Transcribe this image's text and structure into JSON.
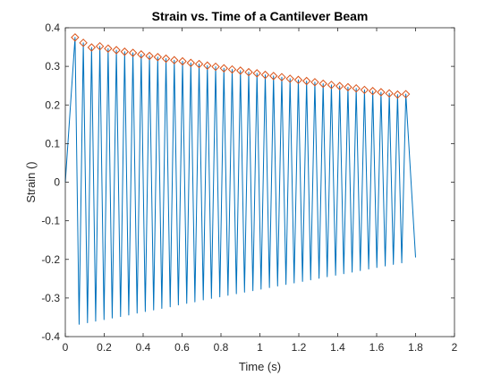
{
  "chart_data": {
    "type": "line",
    "title": "Strain vs. Time of a Cantilever Beam",
    "xlabel": "Time (s)",
    "ylabel": "Strain ()",
    "xlim": [
      0,
      2
    ],
    "ylim": [
      -0.4,
      0.4
    ],
    "xticks": [
      "0",
      "0.2",
      "0.4",
      "0.6",
      "0.8",
      "1",
      "1.2",
      "1.4",
      "1.6",
      "1.8",
      "2"
    ],
    "yticks": [
      "-0.4",
      "-0.3",
      "-0.2",
      "-0.1",
      "0",
      "0.1",
      "0.2",
      "0.3",
      "0.4"
    ],
    "grid": false,
    "colors": {
      "signal": "#0072BD",
      "peaks": "#D95319"
    },
    "series": [
      {
        "type": "line",
        "color": "#0072BD",
        "start": {
          "x": 0.0,
          "y": 0.0
        },
        "peaks_x": [
          0.05,
          0.0925,
          0.135,
          0.1775,
          0.22,
          0.2625,
          0.305,
          0.3475,
          0.39,
          0.4325,
          0.475,
          0.5175,
          0.56,
          0.6025,
          0.645,
          0.6875,
          0.73,
          0.7725,
          0.815,
          0.8575,
          0.9,
          0.9425,
          0.985,
          1.0275,
          1.07,
          1.1125,
          1.155,
          1.1975,
          1.24,
          1.2825,
          1.325,
          1.3675,
          1.41,
          1.4525,
          1.495,
          1.5375,
          1.58,
          1.6225,
          1.665,
          1.7075,
          1.75
        ],
        "peaks_y": [
          0.375,
          0.361,
          0.349,
          0.352,
          0.346,
          0.342,
          0.338,
          0.335,
          0.331,
          0.327,
          0.324,
          0.32,
          0.316,
          0.313,
          0.309,
          0.306,
          0.302,
          0.299,
          0.295,
          0.292,
          0.289,
          0.285,
          0.282,
          0.278,
          0.275,
          0.272,
          0.268,
          0.265,
          0.262,
          0.259,
          0.255,
          0.252,
          0.249,
          0.246,
          0.243,
          0.239,
          0.236,
          0.233,
          0.23,
          0.227,
          0.228
        ],
        "troughs_x": [
          0.071,
          0.114,
          0.156,
          0.199,
          0.241,
          0.284,
          0.326,
          0.369,
          0.411,
          0.454,
          0.496,
          0.539,
          0.581,
          0.624,
          0.666,
          0.709,
          0.751,
          0.794,
          0.836,
          0.879,
          0.921,
          0.964,
          1.006,
          1.049,
          1.091,
          1.134,
          1.176,
          1.219,
          1.261,
          1.304,
          1.346,
          1.389,
          1.431,
          1.474,
          1.516,
          1.559,
          1.601,
          1.644,
          1.686,
          1.729
        ],
        "troughs_y": [
          -0.368,
          -0.364,
          -0.36,
          -0.356,
          -0.352,
          -0.348,
          -0.344,
          -0.339,
          -0.335,
          -0.331,
          -0.327,
          -0.323,
          -0.318,
          -0.314,
          -0.31,
          -0.305,
          -0.301,
          -0.297,
          -0.293,
          -0.289,
          -0.285,
          -0.281,
          -0.277,
          -0.273,
          -0.269,
          -0.265,
          -0.261,
          -0.257,
          -0.253,
          -0.249,
          -0.245,
          -0.241,
          -0.237,
          -0.233,
          -0.229,
          -0.225,
          -0.221,
          -0.217,
          -0.213,
          -0.209
        ],
        "end": {
          "x": 1.8,
          "y": -0.195
        }
      },
      {
        "type": "scatter",
        "marker": "diamond",
        "color": "#D95319",
        "x": [
          0.05,
          0.0925,
          0.135,
          0.1775,
          0.22,
          0.2625,
          0.305,
          0.3475,
          0.39,
          0.4325,
          0.475,
          0.5175,
          0.56,
          0.6025,
          0.645,
          0.6875,
          0.73,
          0.7725,
          0.815,
          0.8575,
          0.9,
          0.9425,
          0.985,
          1.0275,
          1.07,
          1.1125,
          1.155,
          1.1975,
          1.24,
          1.2825,
          1.325,
          1.3675,
          1.41,
          1.4525,
          1.495,
          1.5375,
          1.58,
          1.6225,
          1.665,
          1.7075,
          1.75
        ],
        "y": [
          0.375,
          0.361,
          0.349,
          0.352,
          0.346,
          0.342,
          0.338,
          0.335,
          0.331,
          0.327,
          0.324,
          0.32,
          0.316,
          0.313,
          0.309,
          0.306,
          0.302,
          0.299,
          0.295,
          0.292,
          0.289,
          0.285,
          0.282,
          0.278,
          0.275,
          0.272,
          0.268,
          0.265,
          0.262,
          0.259,
          0.255,
          0.252,
          0.249,
          0.246,
          0.243,
          0.239,
          0.236,
          0.233,
          0.23,
          0.227,
          0.228
        ]
      }
    ]
  }
}
